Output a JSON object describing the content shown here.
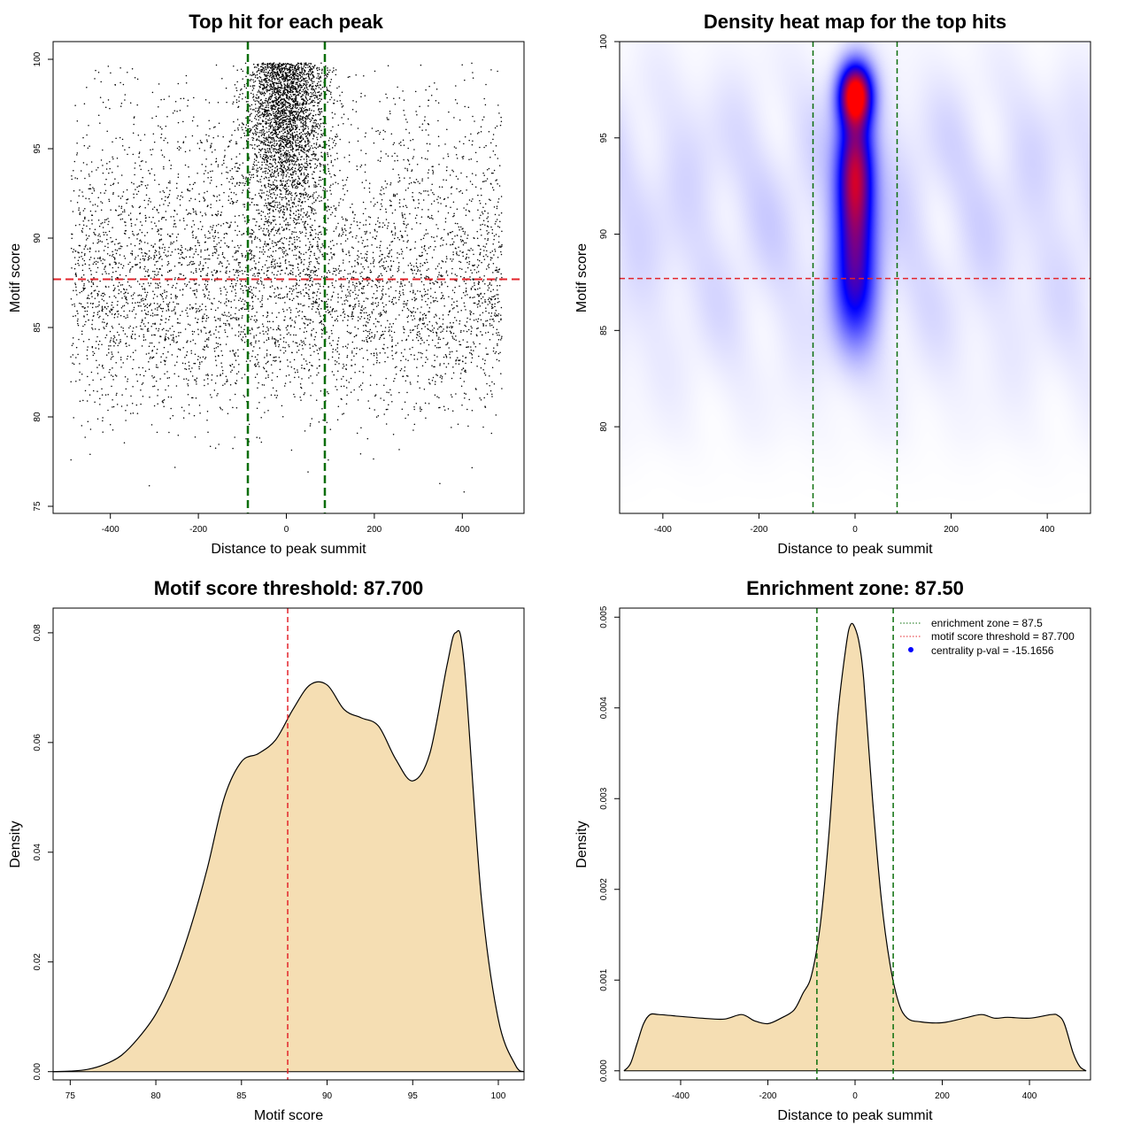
{
  "chart_data": [
    {
      "id": "scatter",
      "type": "scatter",
      "title": "Top hit for each peak",
      "xlabel": "Distance to peak summit",
      "ylabel": "Motif score",
      "xlim": [
        -500,
        500
      ],
      "ylim": [
        75,
        100
      ],
      "x_ticks": [
        "-400",
        "-200",
        "0",
        "200",
        "400"
      ],
      "y_ticks": [
        "75",
        "80",
        "85",
        "90",
        "95",
        "100"
      ],
      "hline": 87.7,
      "vlines": [
        -87.5,
        87.5
      ],
      "point_color": "#000000",
      "hline_color": "#e3242b",
      "vline_color": "#0a6e0a",
      "distribution": {
        "background_x_range": [
          -490,
          490
        ],
        "score_range": [
          75.5,
          99.8
        ],
        "central_peak_x_sd": 45,
        "central_peak_score_range": [
          86,
          99.8
        ]
      }
    },
    {
      "id": "heatmap",
      "type": "heatmap",
      "title": "Density heat map for the top hits",
      "xlabel": "Distance to peak summit",
      "ylabel": "Motif score",
      "xlim": [
        -490,
        490
      ],
      "ylim": [
        75.5,
        100
      ],
      "x_ticks": [
        "-400",
        "-200",
        "0",
        "200",
        "400"
      ],
      "y_ticks": [
        "80",
        "85",
        "90",
        "95",
        "100"
      ],
      "hline": 87.7,
      "vlines": [
        -87.5,
        87.5
      ],
      "colors": [
        "#ffffff",
        "#0000ff",
        "#ff0000"
      ],
      "hotspot": {
        "x": 0,
        "y": 97.3
      },
      "hline_color": "#e3242b",
      "vline_color": "#0a6e0a"
    },
    {
      "id": "score_density",
      "type": "area",
      "title": "Motif score threshold: 87.700",
      "xlabel": "Motif score",
      "ylabel": "Density",
      "xlim": [
        74,
        101.5
      ],
      "ylim": [
        -0.0015,
        0.0845
      ],
      "x_ticks": [
        "75",
        "80",
        "85",
        "90",
        "95",
        "100"
      ],
      "y_ticks": [
        "0.00",
        "0.02",
        "0.04",
        "0.06",
        "0.08"
      ],
      "x": [
        74,
        75,
        76,
        77,
        78,
        79,
        80,
        81,
        82,
        83,
        84,
        85,
        86,
        87,
        88,
        89,
        90,
        91,
        92,
        93,
        94,
        95,
        96,
        97,
        97.5,
        98,
        99,
        100,
        101,
        101.5
      ],
      "y": [
        0,
        0.0001,
        0.0004,
        0.0013,
        0.003,
        0.0062,
        0.0105,
        0.017,
        0.026,
        0.037,
        0.05,
        0.0565,
        0.058,
        0.0605,
        0.066,
        0.0705,
        0.0705,
        0.066,
        0.0645,
        0.063,
        0.057,
        0.053,
        0.058,
        0.074,
        0.08,
        0.0745,
        0.032,
        0.0095,
        0.0012,
        0
      ],
      "fill": "#f5deb3",
      "vline": 87.7,
      "vline_color": "#e3242b"
    },
    {
      "id": "distance_density",
      "type": "area",
      "title": "Enrichment zone: 87.50",
      "xlabel": "Distance to peak summit",
      "ylabel": "Density",
      "xlim": [
        -540,
        540
      ],
      "ylim": [
        -0.0001,
        0.0051
      ],
      "x_ticks": [
        "-400",
        "-200",
        "0",
        "200",
        "400"
      ],
      "y_ticks": [
        "0.000",
        "0.001",
        "0.002",
        "0.003",
        "0.004",
        "0.005"
      ],
      "x": [
        -530,
        -515,
        -500,
        -485,
        -470,
        -450,
        -400,
        -350,
        -300,
        -260,
        -230,
        -200,
        -170,
        -140,
        -120,
        -100,
        -80,
        -60,
        -40,
        -20,
        -10,
        0,
        10,
        20,
        40,
        60,
        80,
        100,
        120,
        150,
        200,
        250,
        290,
        320,
        350,
        400,
        450,
        465,
        480,
        500,
        515,
        530
      ],
      "y": [
        0,
        8e-05,
        0.0003,
        0.00052,
        0.00062,
        0.00062,
        0.0006,
        0.00058,
        0.00057,
        0.00062,
        0.00055,
        0.00052,
        0.00058,
        0.00067,
        0.00085,
        0.00105,
        0.0016,
        0.0026,
        0.0039,
        0.0047,
        0.00492,
        0.00488,
        0.0047,
        0.0043,
        0.003,
        0.0019,
        0.00118,
        0.00075,
        0.00058,
        0.00054,
        0.00053,
        0.00058,
        0.00062,
        0.00058,
        0.00059,
        0.00058,
        0.00062,
        0.00061,
        0.00052,
        0.0002,
        5e-05,
        0
      ],
      "fill": "#f5deb3",
      "vlines": [
        -87.5,
        87.5
      ],
      "vline_color": "#0a6e0a",
      "legend": {
        "position": "top-right",
        "entries": [
          {
            "label": "enrichment zone = 87.5",
            "color": "#0a6e0a",
            "kind": "dotted"
          },
          {
            "label": "motif score threshold = 87.700",
            "color": "#e3242b",
            "kind": "dotted"
          },
          {
            "label": "centrality p-val = -15.1656",
            "color": "#0000ff",
            "kind": "point"
          }
        ]
      }
    }
  ]
}
